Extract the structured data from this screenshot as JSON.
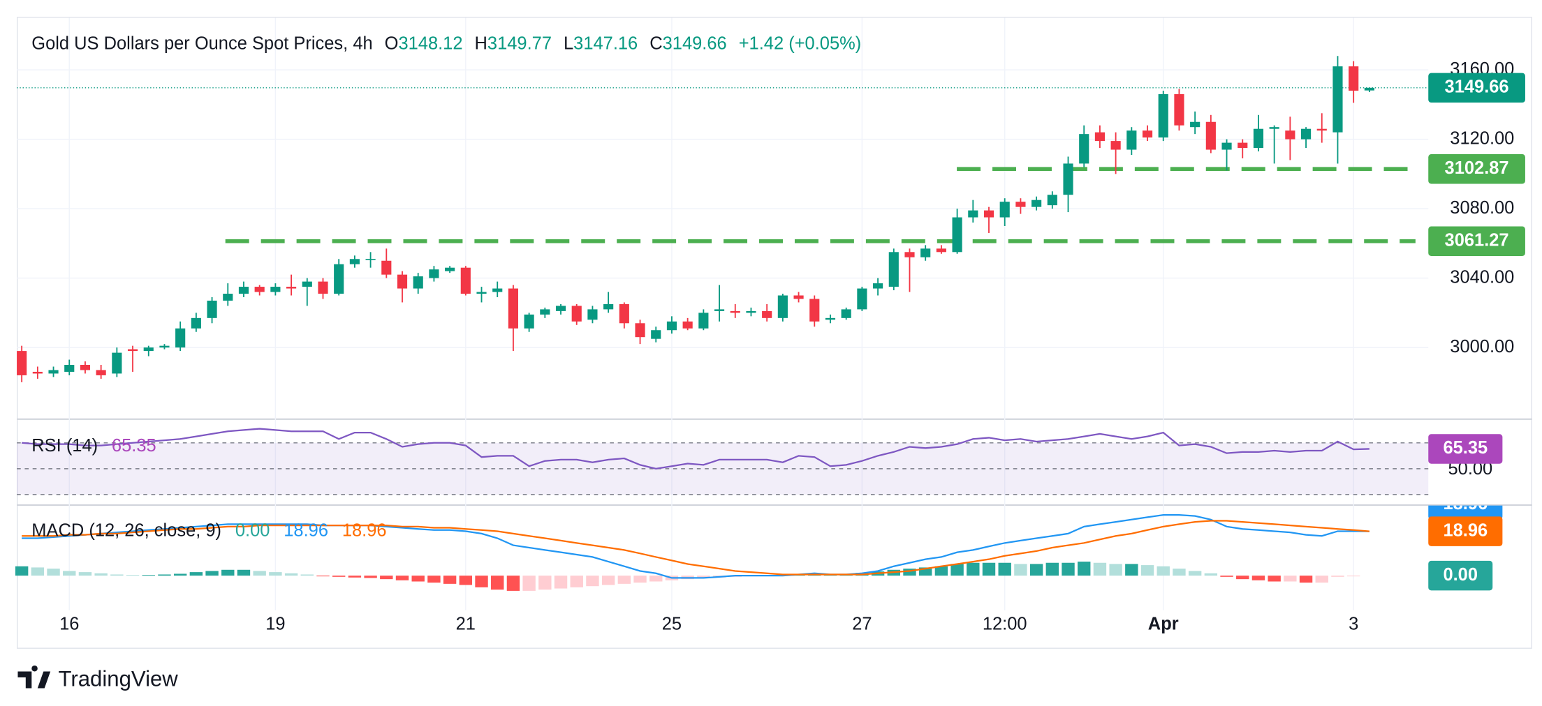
{
  "chart_data": {
    "type": "candlestick",
    "title": "Gold US Dollars per Ounce Spot Prices, 4h",
    "ohlc_legend": [
      {
        "label": "O",
        "value": 3148.12
      },
      {
        "label": "H",
        "value": 3149.77
      },
      {
        "label": "L",
        "value": 3147.16
      },
      {
        "label": "C",
        "value": 3149.66
      }
    ],
    "change": "+1.42 (+0.05%)",
    "categories": [
      null,
      null,
      null,
      "16",
      null,
      null,
      null,
      null,
      null,
      null,
      null,
      null,
      null,
      null,
      null,
      null,
      "19",
      null,
      null,
      null,
      null,
      null,
      null,
      null,
      null,
      null,
      null,
      null,
      "21",
      null,
      null,
      null,
      null,
      null,
      null,
      null,
      null,
      null,
      null,
      null,
      null,
      "25",
      null,
      null,
      null,
      null,
      null,
      null,
      null,
      null,
      null,
      null,
      null,
      "27",
      null,
      null,
      null,
      null,
      null,
      null,
      null,
      null,
      "12:00",
      null,
      null,
      null,
      null,
      null,
      null,
      null,
      null,
      null,
      "Apr",
      null,
      null,
      null,
      null,
      null,
      null,
      null,
      null,
      null,
      null,
      null,
      "3",
      null
    ],
    "open": [
      2998,
      2986,
      2985,
      2986,
      2990,
      2987,
      2985,
      2999,
      2998,
      3000,
      3000,
      3011,
      3017,
      3027,
      3031,
      3035,
      3032,
      3035,
      3035,
      3038,
      3031,
      3048,
      3051,
      3050,
      3042,
      3034,
      3040,
      3044,
      3046,
      3031,
      3032,
      3034,
      3011,
      3019,
      3021,
      3024,
      3016,
      3022,
      3025,
      3014,
      3005,
      3010,
      3015,
      3011,
      3021,
      3021,
      3020,
      3021,
      3017,
      3030,
      3028,
      3016,
      3017,
      3022,
      3034,
      3035,
      3055,
      3052,
      3057,
      3055,
      3075,
      3079,
      3075,
      3084,
      3081,
      3082,
      3088,
      3106,
      3124,
      3119,
      3114,
      3125,
      3121,
      3146,
      3127,
      3130,
      3114,
      3118,
      3115,
      3126,
      3125,
      3120,
      3126,
      3124,
      3162,
      3148.12
    ],
    "high": [
      3001,
      2989,
      2989,
      2993,
      2992,
      2990,
      3000,
      3001,
      3001,
      3002,
      3015,
      3020,
      3029,
      3037,
      3038,
      3036,
      3037,
      3042,
      3040,
      3040,
      3051,
      3053,
      3055,
      3057,
      3044,
      3043,
      3047,
      3047,
      3047,
      3035,
      3038,
      3036,
      3020,
      3023,
      3025,
      3025,
      3024,
      3032,
      3026,
      3016,
      3012,
      3018,
      3017,
      3022,
      3036,
      3025,
      3023,
      3025,
      3031,
      3032,
      3030,
      3019,
      3023,
      3035,
      3040,
      3057,
      3057,
      3059,
      3059,
      3080,
      3085,
      3081,
      3086,
      3086,
      3087,
      3090,
      3110,
      3128,
      3128,
      3124,
      3127,
      3128,
      3148,
      3149,
      3136,
      3134,
      3120,
      3120,
      3134,
      3128,
      3133,
      3127,
      3135,
      3168,
      3165,
      3149.77
    ],
    "low": [
      2980,
      2982,
      2983,
      2984,
      2985,
      2982,
      2983,
      2986,
      2995,
      2999,
      2998,
      3009,
      3014,
      3024,
      3029,
      3030,
      3030,
      3030,
      3024,
      3028,
      3030,
      3046,
      3046,
      3040,
      3026,
      3031,
      3038,
      3043,
      3030,
      3026,
      3029,
      2998,
      3009,
      3017,
      3019,
      3013,
      3014,
      3020,
      3011,
      3002,
      3003,
      3008,
      3010,
      3010,
      3015,
      3017,
      3018,
      3015,
      3015,
      3026,
      3012,
      3014,
      3016,
      3021,
      3030,
      3033,
      3032,
      3050,
      3054,
      3054,
      3072,
      3066,
      3070,
      3077,
      3079,
      3080,
      3078,
      3104,
      3115,
      3100,
      3111,
      3119,
      3119,
      3125,
      3123,
      3112,
      3102,
      3109,
      3113,
      3106,
      3108,
      3115,
      3118,
      3106,
      3141,
      3147.16
    ],
    "close": [
      2984,
      2985,
      2987,
      2990,
      2987,
      2984,
      2997,
      2998,
      3000,
      3001,
      3011,
      3017,
      3027,
      3031,
      3035,
      3032,
      3035,
      3034,
      3038,
      3031,
      3048,
      3051,
      3051,
      3042,
      3034,
      3041,
      3045,
      3046,
      3031,
      3032,
      3034,
      3011,
      3019,
      3022,
      3024,
      3015,
      3022,
      3025,
      3014,
      3006,
      3010,
      3015,
      3011,
      3020,
      3022,
      3020,
      3021,
      3017,
      3030,
      3028,
      3015,
      3017,
      3022,
      3034,
      3037,
      3055,
      3052,
      3057,
      3055,
      3075,
      3079,
      3075,
      3084,
      3081,
      3085,
      3088,
      3106,
      3123,
      3119,
      3114,
      3125,
      3121,
      3146,
      3128,
      3130,
      3114,
      3118,
      3115,
      3126,
      3127,
      3120,
      3126,
      3125,
      3162,
      3148,
      3149.66
    ],
    "up_color": "#089981",
    "down_color": "#f23645",
    "ylim": [
      2959,
      3190
    ],
    "yticks": [
      {
        "value": 3000,
        "label": "3000.00"
      },
      {
        "value": 3040,
        "label": "3040.00"
      },
      {
        "value": 3080,
        "label": "3080.00"
      },
      {
        "value": 3120,
        "label": "3120.00"
      },
      {
        "value": 3160,
        "label": "3160.00"
      }
    ],
    "grid": true,
    "levels": [
      {
        "value": 3061.27,
        "color": "#4caf50"
      },
      {
        "value": 3102.87,
        "color": "#4caf50"
      }
    ],
    "rsi": {
      "name": "RSI (14)",
      "color": "#7e57c2",
      "label_color": "#ab47bc",
      "values": [
        70,
        69,
        69,
        69,
        68,
        68,
        69,
        70,
        71,
        72,
        73,
        75,
        77,
        79,
        80,
        81,
        80,
        79,
        79,
        79,
        73,
        78,
        78,
        73,
        67,
        69,
        70,
        70,
        68,
        59,
        60,
        60,
        52,
        56,
        57,
        57,
        55,
        57,
        58,
        53,
        50,
        52,
        54,
        53,
        57,
        57,
        57,
        57,
        55,
        60,
        59,
        52,
        53,
        56,
        60,
        63,
        67,
        66,
        67,
        69,
        73,
        74,
        72,
        73,
        71,
        72,
        73,
        75,
        77,
        75,
        73,
        75,
        78,
        68,
        69,
        67,
        62,
        63,
        63,
        64,
        63,
        64,
        64,
        71,
        65,
        65.35
      ],
      "ylim": [
        23,
        88
      ],
      "yticks": [
        {
          "value": 50,
          "label": "50.00"
        }
      ],
      "bands": [
        30,
        50,
        70
      ]
    },
    "macd": {
      "name": "MACD (12, 26, close, 9)",
      "ylim": [
        -14.8,
        30
      ],
      "histogram": {
        "values": [
          4,
          3.5,
          3,
          2,
          1.5,
          1,
          0.5,
          0.3,
          0.3,
          0.5,
          0.8,
          1.5,
          2,
          2.5,
          2.5,
          2,
          1.5,
          1,
          0.5,
          -0.3,
          -0.5,
          -0.8,
          -1,
          -1.5,
          -2,
          -2.5,
          -3,
          -3.5,
          -4,
          -5,
          -6,
          -6.5,
          -6.5,
          -6,
          -5.5,
          -5,
          -4.5,
          -4,
          -3.5,
          -3,
          -2.5,
          -2,
          -1.5,
          -1,
          -0.8,
          -0.5,
          -0.3,
          -0.2,
          0.2,
          0.3,
          0.3,
          0.5,
          0.8,
          1.2,
          1.8,
          2.5,
          3,
          3.5,
          4,
          5,
          5.5,
          5.5,
          5.5,
          5,
          5,
          5.5,
          5.5,
          6,
          5.5,
          5,
          5,
          4.5,
          4,
          3,
          2,
          1,
          -0.5,
          -1.5,
          -2,
          -2.5,
          -2.5,
          -3,
          -3,
          -0.5,
          -0.3,
          0
        ],
        "last_label": "0.00",
        "colors": {
          "up_rising": "#26a69a",
          "up_falling": "#b2dfdb",
          "down_falling": "#ff5252",
          "down_rising": "#ffcdd2"
        }
      },
      "series": [
        {
          "color": "#2196f3",
          "values": [
            16,
            16,
            16.5,
            17,
            17.5,
            18,
            18.5,
            19,
            19.5,
            20,
            20.5,
            21,
            21.5,
            22,
            22,
            22,
            22,
            22,
            22,
            21.5,
            21.5,
            21.5,
            21.5,
            21,
            20.5,
            20,
            19.5,
            19.5,
            19,
            18,
            16,
            13,
            12,
            11,
            10,
            9,
            8,
            6,
            4,
            2,
            1,
            -1,
            -1,
            -1,
            -0.5,
            0,
            0,
            0,
            0,
            0.5,
            1,
            0.5,
            0.5,
            1,
            2,
            4,
            5.5,
            7,
            8,
            10,
            11,
            12.5,
            14,
            15,
            16,
            17,
            18,
            21,
            22,
            23,
            24,
            25,
            26,
            26,
            25.5,
            24,
            21,
            20,
            19.5,
            19,
            18.5,
            17.5,
            17,
            19,
            19,
            18.96
          ]
        },
        {
          "color": "#ff6d00",
          "values": [
            17,
            17,
            17,
            17.5,
            17.5,
            18,
            18,
            18.5,
            19,
            19.5,
            20,
            20,
            20.5,
            21,
            21,
            21.5,
            21.5,
            21.5,
            21.5,
            21.5,
            21.5,
            21.5,
            21.5,
            21.5,
            21,
            21,
            20.5,
            20.5,
            20,
            19.5,
            19,
            18,
            17,
            16,
            15,
            14,
            13,
            12,
            11,
            9.5,
            8,
            6.5,
            5,
            4,
            3,
            2,
            1.5,
            1,
            0.5,
            0.5,
            0.5,
            0.5,
            0.5,
            0.5,
            1,
            1.5,
            2,
            3,
            4,
            5,
            6,
            7,
            8.5,
            9.5,
            10.5,
            12,
            13,
            14,
            15.5,
            17,
            18,
            19.5,
            21,
            22,
            23,
            23.5,
            23.5,
            23,
            22.5,
            22,
            21.5,
            21,
            20.5,
            20,
            19.5,
            18.96
          ]
        }
      ]
    },
    "brand": "TradingView"
  }
}
